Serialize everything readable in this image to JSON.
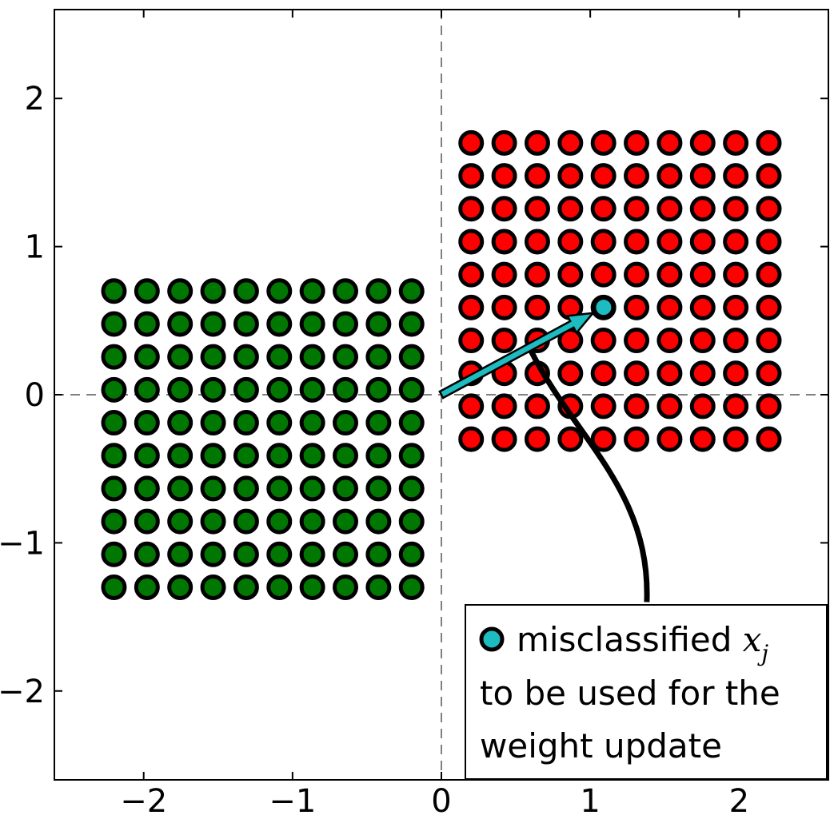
{
  "chart_data": {
    "type": "scatter",
    "title": "",
    "xlabel": "",
    "ylabel": "",
    "xlim": [
      -2.6,
      2.6
    ],
    "ylim": [
      -2.6,
      2.6
    ],
    "grid": false,
    "xticks": [
      -2,
      -1,
      0,
      1,
      2
    ],
    "yticks": [
      -2,
      -1,
      0,
      1,
      2
    ],
    "xtick_labels": [
      "−2",
      "−1",
      "0",
      "1",
      "2"
    ],
    "ytick_labels": [
      "−2",
      "−1",
      "0",
      "1",
      "2"
    ],
    "reference_lines": [
      {
        "orientation": "vertical",
        "value": 0,
        "style": "dashed",
        "color": "#808080"
      },
      {
        "orientation": "horizontal",
        "value": 0,
        "style": "dashed",
        "color": "#808080"
      }
    ],
    "series": [
      {
        "color": "#007700",
        "grid": {
          "x_start": -2.2,
          "x_step": 0.2222,
          "x_count": 10,
          "y_start": -1.3,
          "y_step": 0.2222,
          "y_count": 10
        }
      },
      {
        "color": "#ff0000",
        "grid": {
          "x_start": 0.2,
          "x_step": 0.2222,
          "x_count": 10,
          "y_start": -0.3,
          "y_step": 0.2222,
          "y_count": 10
        }
      }
    ],
    "highlight_point": {
      "x": 1.09,
      "y": 0.59,
      "color": "#1dbcc0"
    },
    "weight_vector": {
      "from": [
        0,
        0
      ],
      "to": [
        1.09,
        0.59
      ],
      "color": "#1dbcc0"
    },
    "annotation": {
      "line1_text": "misclassified ",
      "line1_math": "x",
      "line1_sub": "j",
      "line2": "to be used for the",
      "line3": "weight update",
      "pointer_from": [
        1.38,
        -1.4
      ],
      "pointer_to": [
        0.6,
        0.3
      ],
      "location": "lower-right"
    }
  }
}
